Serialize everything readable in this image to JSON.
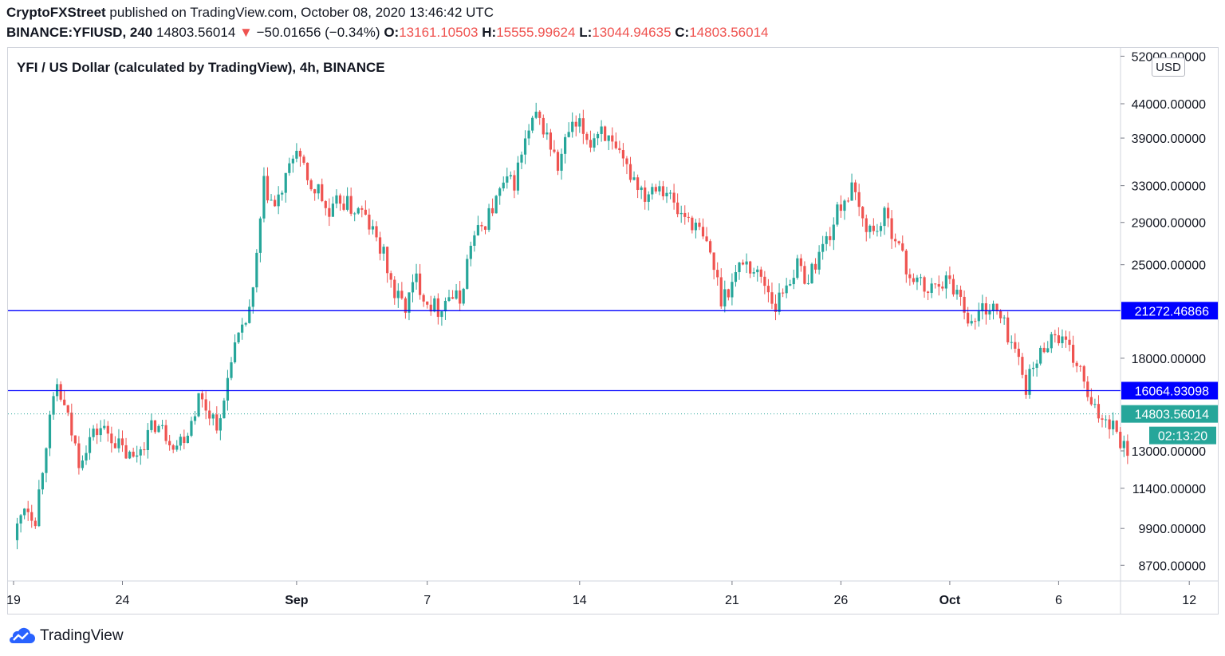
{
  "header": {
    "publisher": "CryptoFXStreet",
    "published_text": "published on TradingView.com, October 08, 2020 13:46:42 UTC",
    "symbol": "BINANCE:YFIUSD, 240",
    "last": "14803.56014",
    "change_arrow": "▼",
    "change": "−50.01656 (−0.34%)",
    "o_label": "O:",
    "o": "13161.10503",
    "h_label": "H:",
    "h": "15555.99624",
    "l_label": "L:",
    "l": "13044.94635",
    "c_label": "C:",
    "c": "14803.56014"
  },
  "plot_title": "YFI / US Dollar (calculated by TradingView), 4h, BINANCE",
  "currency_button": "USD",
  "footer": {
    "brand": "TradingView",
    "logo_icon": "tradingview-logo-icon"
  },
  "colors": {
    "up": "#26a69a",
    "down": "#ef5350",
    "line": "#0000ff",
    "price": "#26a69a",
    "grid": "#f0f3fa"
  },
  "chart_data": {
    "type": "candlestick",
    "title": "YFI / US Dollar (calculated by TradingView), 4h, BINANCE",
    "scale": "log",
    "ylim": [
      8000,
      54000
    ],
    "y_ticks": [
      "52000.00000",
      "44000.00000",
      "39000.00000",
      "33000.00000",
      "29000.00000",
      "25000.00000",
      "18000.00000",
      "13000.00000",
      "11400.00000",
      "9900.00000",
      "8700.00000"
    ],
    "x_ticks": [
      {
        "label": "19",
        "day": 0,
        "bold": false
      },
      {
        "label": "24",
        "day": 5,
        "bold": false
      },
      {
        "label": "Sep",
        "day": 13,
        "bold": true
      },
      {
        "label": "7",
        "day": 19,
        "bold": false
      },
      {
        "label": "14",
        "day": 26,
        "bold": false
      },
      {
        "label": "21",
        "day": 33,
        "bold": false
      },
      {
        "label": "26",
        "day": 38,
        "bold": false
      },
      {
        "label": "Oct",
        "day": 43,
        "bold": true
      },
      {
        "label": "6",
        "day": 48,
        "bold": false
      },
      {
        "label": "12",
        "day": 54,
        "bold": false
      }
    ],
    "close_path": [
      [
        0,
        9500
      ],
      [
        0.5,
        10800
      ],
      [
        1,
        10300
      ],
      [
        1.5,
        13500
      ],
      [
        2,
        16300
      ],
      [
        2.5,
        14500
      ],
      [
        3,
        12600
      ],
      [
        3.5,
        13600
      ],
      [
        4,
        14100
      ],
      [
        4.5,
        13700
      ],
      [
        5,
        13000
      ],
      [
        5.5,
        12600
      ],
      [
        6,
        13500
      ],
      [
        6.5,
        14300
      ],
      [
        7,
        13800
      ],
      [
        7.5,
        13300
      ],
      [
        8,
        14000
      ],
      [
        8.5,
        15700
      ],
      [
        9,
        14900
      ],
      [
        9.5,
        14200
      ],
      [
        10,
        18300
      ],
      [
        10.5,
        19600
      ],
      [
        11,
        22500
      ],
      [
        11.5,
        33000
      ],
      [
        12,
        30500
      ],
      [
        12.5,
        33500
      ],
      [
        13,
        38000
      ],
      [
        13.5,
        33000
      ],
      [
        14,
        32500
      ],
      [
        14.5,
        29500
      ],
      [
        15,
        31500
      ],
      [
        15.5,
        30500
      ],
      [
        16,
        30000
      ],
      [
        16.5,
        28000
      ],
      [
        17,
        25800
      ],
      [
        17.5,
        22500
      ],
      [
        18,
        21600
      ],
      [
        18.5,
        23800
      ],
      [
        19,
        22000
      ],
      [
        19.5,
        21400
      ],
      [
        20,
        22500
      ],
      [
        20.5,
        22000
      ],
      [
        21,
        27000
      ],
      [
        21.5,
        28500
      ],
      [
        22,
        30500
      ],
      [
        22.5,
        33000
      ],
      [
        23,
        33500
      ],
      [
        23.5,
        38500
      ],
      [
        24,
        42000
      ],
      [
        24.5,
        39500
      ],
      [
        25,
        35000
      ],
      [
        25.5,
        40000
      ],
      [
        26,
        40500
      ],
      [
        26.5,
        38500
      ],
      [
        27,
        40800
      ],
      [
        27.5,
        37500
      ],
      [
        28,
        35500
      ],
      [
        28.5,
        34000
      ],
      [
        29,
        32000
      ],
      [
        29.5,
        33500
      ],
      [
        30,
        32500
      ],
      [
        30.5,
        30000
      ],
      [
        31,
        29500
      ],
      [
        31.5,
        28000
      ],
      [
        32,
        26000
      ],
      [
        32.5,
        22300
      ],
      [
        33,
        23500
      ],
      [
        33.5,
        25500
      ],
      [
        34,
        24500
      ],
      [
        34.5,
        23500
      ],
      [
        35,
        21600
      ],
      [
        35.5,
        23500
      ],
      [
        36,
        24800
      ],
      [
        36.5,
        23800
      ],
      [
        37,
        26000
      ],
      [
        37.5,
        28000
      ],
      [
        38,
        31000
      ],
      [
        38.5,
        32500
      ],
      [
        39,
        29200
      ],
      [
        39.5,
        28000
      ],
      [
        40,
        29500
      ],
      [
        40.5,
        27800
      ],
      [
        41,
        24500
      ],
      [
        41.5,
        23600
      ],
      [
        42,
        22600
      ],
      [
        42.5,
        23800
      ],
      [
        43,
        23500
      ],
      [
        43.5,
        22400
      ],
      [
        44,
        20200
      ],
      [
        44.5,
        21500
      ],
      [
        45,
        21500
      ],
      [
        45.5,
        20200
      ],
      [
        46,
        18500
      ],
      [
        46.5,
        16400
      ],
      [
        47,
        17800
      ],
      [
        47.5,
        19300
      ],
      [
        48,
        19500
      ],
      [
        48.5,
        18300
      ],
      [
        49,
        17200
      ],
      [
        49.5,
        15000
      ],
      [
        50,
        14700
      ],
      [
        50.5,
        14400
      ],
      [
        51,
        13200
      ],
      [
        51.2,
        13100
      ],
      [
        51.3,
        14800
      ]
    ],
    "horizontal_lines": [
      {
        "price": 21272.46866,
        "label": "21272.46866",
        "color": "#0000ff"
      },
      {
        "price": 16064.93098,
        "label": "16064.93098",
        "color": "#0000ff"
      }
    ],
    "last_price": {
      "price": 14803.56014,
      "label": "14803.56014",
      "countdown": "02:13:20",
      "color": "#26a69a"
    }
  }
}
